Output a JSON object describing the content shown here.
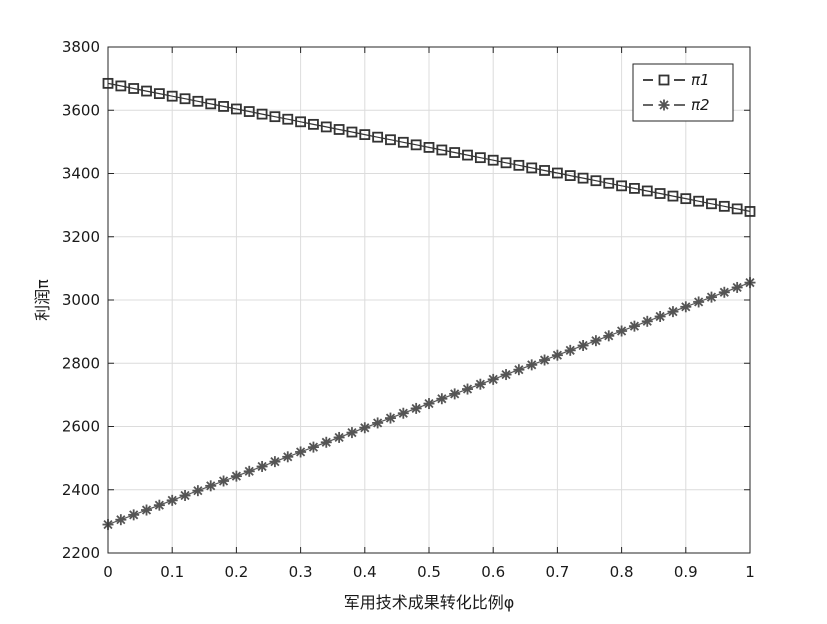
{
  "chart_data": {
    "type": "line",
    "xlabel": "军用技术成果转化比例φ",
    "ylabel": "利润π",
    "xlim": [
      0,
      1
    ],
    "ylim": [
      2200,
      3800
    ],
    "x_ticks": [
      "0",
      "0.1",
      "0.2",
      "0.3",
      "0.4",
      "0.5",
      "0.6",
      "0.7",
      "0.8",
      "0.9",
      "1"
    ],
    "y_ticks": [
      "2200",
      "2400",
      "2600",
      "2800",
      "3000",
      "3200",
      "3400",
      "3600",
      "3800"
    ],
    "grid": true,
    "legend_position": "top-right",
    "series": [
      {
        "name": "π1",
        "marker": "square",
        "color": "#333333",
        "y_start": 3685,
        "y_end": 3280,
        "points": 51
      },
      {
        "name": "π2",
        "marker": "asterisk",
        "color": "#555555",
        "y_start": 2290,
        "y_end": 3055,
        "points": 51
      }
    ]
  }
}
